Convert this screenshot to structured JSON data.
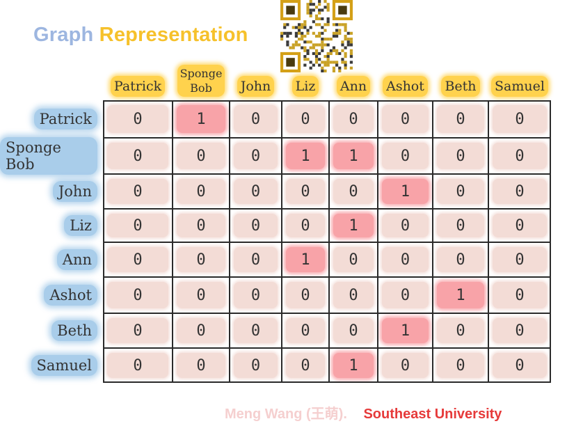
{
  "title": {
    "part1": "Graph",
    "part2": "Representation"
  },
  "columns": [
    "Patrick",
    "Sponge Bob",
    "John",
    "Liz",
    "Ann",
    "Ashot",
    "Beth",
    "Samuel"
  ],
  "column_lines": [
    [
      "Patrick"
    ],
    [
      "Sponge",
      "Bob"
    ],
    [
      "John"
    ],
    [
      "Liz"
    ],
    [
      "Ann"
    ],
    [
      "Ashot"
    ],
    [
      "Beth"
    ],
    [
      "Samuel"
    ]
  ],
  "rows": [
    "Patrick",
    "Sponge Bob",
    "John",
    "Liz",
    "Ann",
    "Ashot",
    "Beth",
    "Samuel"
  ],
  "matrix": [
    [
      0,
      1,
      0,
      0,
      0,
      0,
      0,
      0
    ],
    [
      0,
      0,
      0,
      1,
      1,
      0,
      0,
      0
    ],
    [
      0,
      0,
      0,
      0,
      0,
      1,
      0,
      0
    ],
    [
      0,
      0,
      0,
      0,
      1,
      0,
      0,
      0
    ],
    [
      0,
      0,
      0,
      1,
      0,
      0,
      0,
      0
    ],
    [
      0,
      0,
      0,
      0,
      0,
      0,
      1,
      0
    ],
    [
      0,
      0,
      0,
      0,
      0,
      1,
      0,
      0
    ],
    [
      0,
      0,
      0,
      0,
      1,
      0,
      0,
      0
    ]
  ],
  "colors": {
    "title_graph": "#9db6e0",
    "title_representation": "#f6c12b",
    "column_highlight": "#ffd24d",
    "row_highlight": "#a9cdea",
    "cell_zero": "#f3dcd6",
    "cell_one": "#f8a3a8",
    "footer_author": "#f5cfcf",
    "footer_university": "#e63a3a"
  },
  "footer": {
    "author": "Meng Wang (王萌).",
    "university": "Southeast University"
  }
}
